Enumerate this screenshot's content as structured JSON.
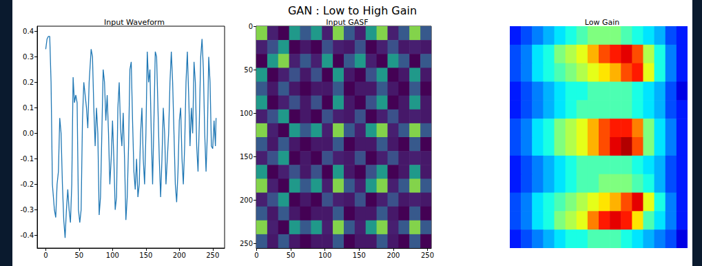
{
  "title": "GAN : Low to High Gain",
  "chart_data": [
    {
      "type": "line",
      "title": "Input Waveform",
      "color": "#1f77b4",
      "grid": false,
      "x": [
        0,
        2,
        4,
        6,
        8,
        10,
        13,
        15,
        17,
        19,
        21,
        23,
        25,
        27,
        29,
        31,
        33,
        35,
        37,
        39,
        41,
        43,
        45,
        47,
        49,
        51,
        53,
        55,
        57,
        59,
        61,
        63,
        65,
        68,
        70,
        72,
        74,
        76,
        78,
        80,
        82,
        84,
        86,
        88,
        90,
        92,
        94,
        96,
        98,
        100,
        102,
        104,
        106,
        108,
        110,
        112,
        114,
        116,
        118,
        120,
        122,
        124,
        126,
        128,
        130,
        132,
        134,
        136,
        138,
        140,
        142,
        144,
        146,
        148,
        150,
        152,
        154,
        156,
        158,
        160,
        162,
        164,
        166,
        168,
        170,
        172,
        174,
        176,
        178,
        180,
        182,
        184,
        186,
        188,
        190,
        192,
        194,
        196,
        198,
        200,
        202,
        204,
        206,
        208,
        210,
        212,
        214,
        216,
        218,
        220,
        222,
        224,
        226,
        228,
        230,
        232,
        234,
        236,
        238,
        240,
        242,
        244,
        246,
        248,
        250,
        252,
        254,
        255
      ],
      "values": [
        0.33,
        0.37,
        0.38,
        0.38,
        0.2,
        -0.2,
        -0.3,
        -0.33,
        -0.2,
        -0.15,
        0.06,
        0,
        -0.2,
        -0.34,
        -0.41,
        -0.3,
        -0.22,
        -0.3,
        -0.35,
        -0.2,
        0.22,
        0.12,
        0.15,
        0.12,
        -0.3,
        -0.35,
        -0.3,
        0.05,
        0.2,
        0.15,
        0.1,
        0.02,
        0.2,
        0.33,
        0.3,
        0.1,
        -0.05,
        0.1,
        0,
        -0.32,
        -0.25,
        0,
        0.25,
        0.2,
        0.05,
        0.15,
        0,
        -0.2,
        -0.1,
        0.05,
        -0.1,
        -0.3,
        -0.25,
        0.1,
        0.2,
        0.02,
        -0.05,
        0.08,
        -0.1,
        -0.34,
        -0.25,
        -0.05,
        0.25,
        0.28,
        0.05,
        -0.15,
        -0.22,
        -0.1,
        -0.25,
        -0.2,
        0,
        0.1,
        -0.1,
        -0.2,
        0,
        0.32,
        0.2,
        0.25,
        0,
        -0.2,
        0.05,
        0.32,
        0.3,
        0.1,
        -0.1,
        -0.25,
        -0.1,
        0.1,
        0,
        -0.2,
        -0.1,
        0,
        0.2,
        0.32,
        0.2,
        0,
        -0.2,
        -0.27,
        -0.15,
        0.05,
        0.1,
        -0.1,
        -0.2,
        -0.05,
        0.2,
        0.32,
        0.15,
        -0.05,
        0.1,
        0,
        0.28,
        0.2,
        -0.05,
        -0.15,
        0.05,
        0.3,
        0.37,
        0.25,
        0,
        -0.15,
        0,
        0.3,
        0.2,
        -0.05,
        -0.06,
        0.05,
        -0.05,
        0.06
      ],
      "xlim": [
        -12.75,
        267.75
      ],
      "xticks": [
        0,
        50,
        100,
        150,
        200,
        250
      ],
      "ylim": [
        -0.45,
        0.42
      ],
      "yticks": [
        -0.4,
        -0.3,
        -0.2,
        -0.1,
        {
          "value": 0,
          "label": "0.0"
        },
        0.1,
        0.2,
        0.3,
        0.4
      ]
    },
    {
      "type": "heatmap",
      "title": "Input GASF",
      "color": "viridis",
      "color_range": [
        -1,
        1
      ],
      "xlim": [
        -0.5,
        255.5
      ],
      "xticks": [
        0,
        50,
        100,
        150,
        200,
        250
      ],
      "ylim": [
        255.5,
        -0.5
      ],
      "yticks": [
        0,
        50,
        100,
        150,
        200,
        250
      ],
      "cells": [
        [
          0.62,
          -0.83,
          -1,
          0.07,
          -0.44,
          0.07,
          -0.83,
          0.62,
          -0.44,
          -0.83,
          0.07,
          0.62,
          -0.83,
          -0.44,
          0.62,
          -0.44
        ],
        [
          -0.83,
          -0.5,
          0.07,
          -1,
          -0.87,
          -1,
          -0.5,
          -0.83,
          -0.87,
          -0.5,
          -1,
          -0.83,
          -0.5,
          -0.87,
          -0.83,
          -0.87
        ],
        [
          -1,
          0.07,
          0.62,
          -0.83,
          -0.44,
          -0.83,
          0.07,
          -1,
          -0.44,
          0.07,
          -0.83,
          -1,
          0.07,
          -0.44,
          -1,
          -0.44
        ],
        [
          0.07,
          -1,
          -0.83,
          -0.5,
          -0.87,
          -0.5,
          -1,
          0.07,
          -0.87,
          -1,
          -0.5,
          0.07,
          -1,
          -0.87,
          0.07,
          -0.87
        ],
        [
          -0.44,
          -0.87,
          -0.44,
          -0.87,
          -1,
          -0.87,
          -0.87,
          -0.44,
          -1,
          -0.87,
          -0.87,
          -0.44,
          -0.87,
          -1,
          -0.44,
          -1
        ],
        [
          0.07,
          -1,
          -0.83,
          -0.5,
          -0.87,
          -0.5,
          -1,
          0.07,
          -0.87,
          -1,
          -0.5,
          0.07,
          -1,
          -0.87,
          0.07,
          -0.87
        ],
        [
          -0.83,
          -0.5,
          0.07,
          -1,
          -0.87,
          -1,
          -0.5,
          -0.83,
          -0.87,
          -0.5,
          -1,
          -0.83,
          -0.5,
          -0.87,
          -0.83,
          -0.87
        ],
        [
          0.62,
          -0.83,
          -1,
          0.07,
          -0.44,
          0.07,
          -0.83,
          0.62,
          -0.44,
          -0.83,
          0.07,
          0.62,
          -0.83,
          -0.44,
          0.62,
          -0.44
        ],
        [
          -0.44,
          -0.87,
          -0.44,
          -0.87,
          -1,
          -0.87,
          -0.87,
          -0.44,
          -1,
          -0.87,
          -0.87,
          -0.44,
          -0.87,
          -1,
          -0.44,
          -1
        ],
        [
          -0.83,
          -0.5,
          0.07,
          -1,
          -0.87,
          -1,
          -0.5,
          -0.83,
          -0.87,
          -0.5,
          -1,
          -0.83,
          -0.5,
          -0.87,
          -0.83,
          -0.87
        ],
        [
          0.07,
          -1,
          -0.83,
          -0.5,
          -0.87,
          -0.5,
          -1,
          0.07,
          -0.87,
          -1,
          -0.5,
          0.07,
          -1,
          -0.87,
          0.07,
          -0.87
        ],
        [
          0.62,
          -0.83,
          -1,
          0.07,
          -0.44,
          0.07,
          -0.83,
          0.62,
          -0.44,
          -0.83,
          0.07,
          0.62,
          -0.83,
          -0.44,
          0.62,
          -0.44
        ],
        [
          -0.83,
          -0.5,
          0.07,
          -1,
          -0.87,
          -1,
          -0.5,
          -0.83,
          -0.87,
          -0.5,
          -1,
          -0.83,
          -0.5,
          -0.87,
          -0.83,
          -0.87
        ],
        [
          -0.44,
          -0.87,
          -0.44,
          -0.87,
          -1,
          -0.87,
          -0.87,
          -0.44,
          -1,
          -0.87,
          -0.87,
          -0.44,
          -0.87,
          -1,
          -0.44,
          -1
        ],
        [
          0.62,
          -0.83,
          -1,
          0.07,
          -0.44,
          0.07,
          -0.83,
          0.62,
          -0.44,
          -0.83,
          0.07,
          0.62,
          -0.83,
          -0.44,
          0.62,
          -0.44
        ],
        [
          -0.44,
          -0.87,
          -0.44,
          -0.87,
          -1,
          -0.87,
          -0.87,
          -0.44,
          -1,
          -0.87,
          -0.87,
          -0.44,
          -0.87,
          -1,
          -0.44,
          -1
        ]
      ]
    },
    {
      "type": "heatmap",
      "title": "Low Gain",
      "color": "jet",
      "color_range": [
        0,
        1
      ],
      "tick_labels": false,
      "cells": [
        [
          0.15,
          0.2,
          0.25,
          0.3,
          0.35,
          0.4,
          0.45,
          0.5,
          0.5,
          0.5,
          0.45,
          0.4,
          0.35,
          0.3,
          0.2,
          0.15
        ],
        [
          0.2,
          0.25,
          0.35,
          0.4,
          0.5,
          0.55,
          0.6,
          0.7,
          0.8,
          0.85,
          0.9,
          0.8,
          0.55,
          0.4,
          0.25,
          0.15
        ],
        [
          0.2,
          0.25,
          0.35,
          0.4,
          0.45,
          0.5,
          0.55,
          0.6,
          0.65,
          0.7,
          0.8,
          0.85,
          0.6,
          0.4,
          0.25,
          0.15
        ],
        [
          0.15,
          0.2,
          0.25,
          0.3,
          0.35,
          0.4,
          0.4,
          0.45,
          0.45,
          0.45,
          0.45,
          0.4,
          0.35,
          0.3,
          0.2,
          0.1
        ],
        [
          0.15,
          0.2,
          0.25,
          0.3,
          0.35,
          0.4,
          0.45,
          0.45,
          0.45,
          0.45,
          0.45,
          0.4,
          0.35,
          0.3,
          0.2,
          0.15
        ],
        [
          0.2,
          0.25,
          0.35,
          0.4,
          0.5,
          0.55,
          0.6,
          0.7,
          0.8,
          0.85,
          0.85,
          0.75,
          0.5,
          0.35,
          0.25,
          0.15
        ],
        [
          0.2,
          0.25,
          0.35,
          0.4,
          0.5,
          0.55,
          0.6,
          0.7,
          0.8,
          0.9,
          0.95,
          0.8,
          0.5,
          0.35,
          0.25,
          0.15
        ],
        [
          0.15,
          0.2,
          0.25,
          0.3,
          0.35,
          0.4,
          0.45,
          0.45,
          0.45,
          0.45,
          0.45,
          0.4,
          0.35,
          0.3,
          0.2,
          0.15
        ],
        [
          0.15,
          0.2,
          0.25,
          0.3,
          0.35,
          0.4,
          0.45,
          0.45,
          0.5,
          0.5,
          0.5,
          0.45,
          0.4,
          0.3,
          0.2,
          0.15
        ],
        [
          0.2,
          0.25,
          0.35,
          0.4,
          0.45,
          0.5,
          0.55,
          0.6,
          0.65,
          0.7,
          0.8,
          0.9,
          0.6,
          0.4,
          0.25,
          0.15
        ],
        [
          0.2,
          0.25,
          0.35,
          0.4,
          0.5,
          0.55,
          0.6,
          0.75,
          0.85,
          0.9,
          0.85,
          0.65,
          0.45,
          0.35,
          0.25,
          0.15
        ],
        [
          0.15,
          0.2,
          0.25,
          0.3,
          0.35,
          0.4,
          0.4,
          0.45,
          0.45,
          0.45,
          0.4,
          0.35,
          0.3,
          0.25,
          0.2,
          0.1
        ]
      ]
    }
  ]
}
